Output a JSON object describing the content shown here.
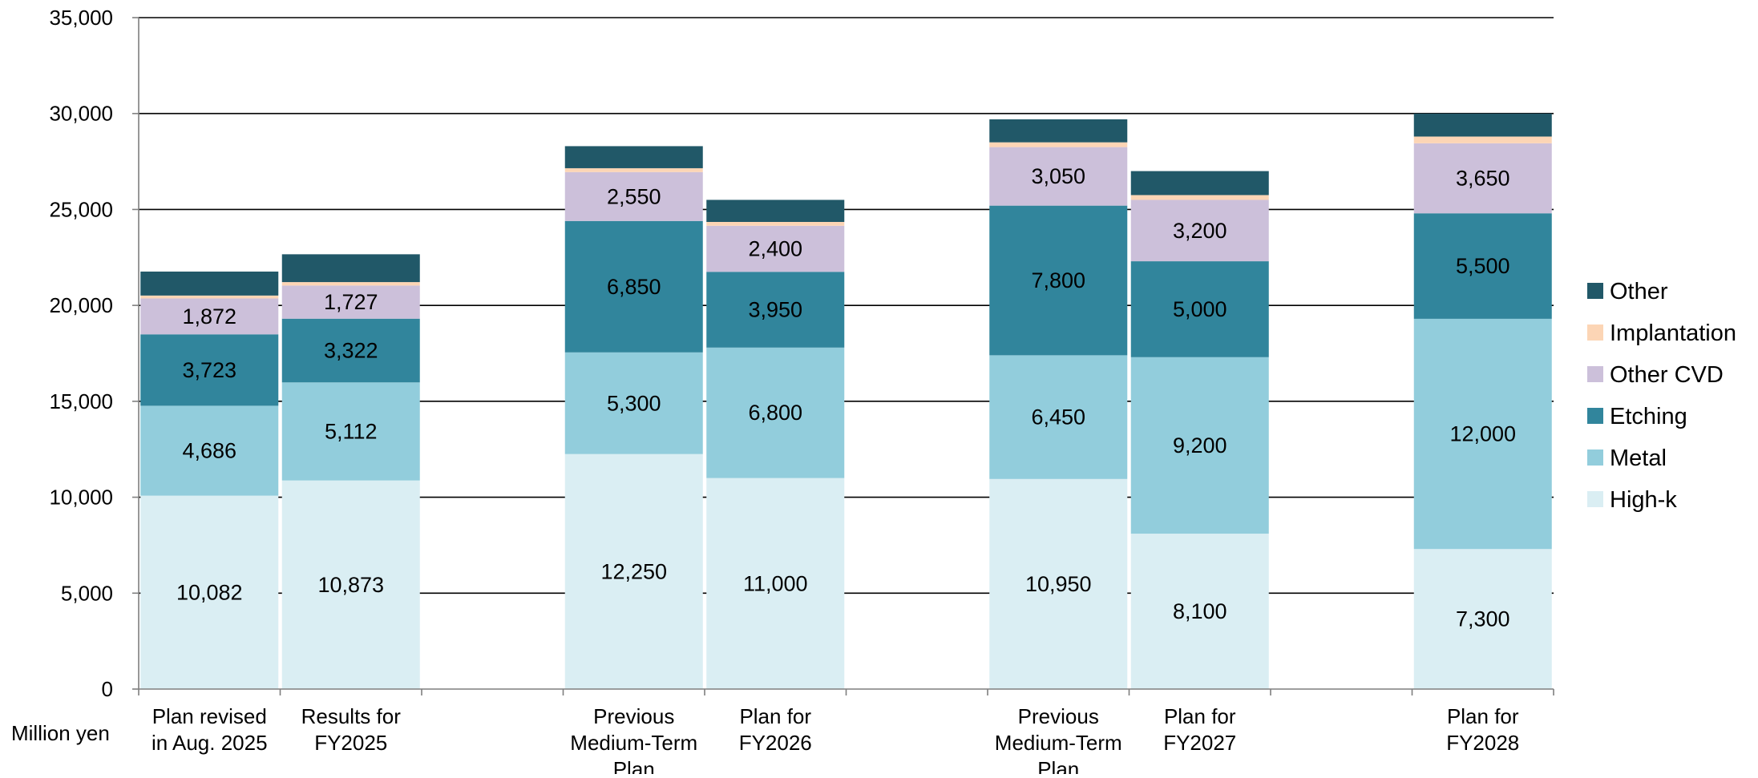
{
  "chart_data": {
    "type": "bar",
    "stacked": true,
    "unit_label": "Million yen",
    "ylim": [
      0,
      35000
    ],
    "y_ticks": [
      {
        "value": 0,
        "label": "0"
      },
      {
        "value": 5000,
        "label": "5,000"
      },
      {
        "value": 10000,
        "label": "10,000"
      },
      {
        "value": 15000,
        "label": "15,000"
      },
      {
        "value": 20000,
        "label": "20,000"
      },
      {
        "value": 25000,
        "label": "25,000"
      },
      {
        "value": 30000,
        "label": "30,000"
      },
      {
        "value": 35000,
        "label": "35,000"
      }
    ],
    "grid": true,
    "legend_position": "right",
    "categories": [
      {
        "lines": [
          "Plan revised",
          "in Aug. 2025"
        ]
      },
      {
        "lines": [
          "Results for",
          "FY2025"
        ]
      },
      null,
      {
        "lines": [
          "Previous",
          "Medium-Term",
          "Plan"
        ]
      },
      {
        "lines": [
          "Plan for",
          "FY2026"
        ]
      },
      null,
      {
        "lines": [
          "Previous",
          "Medium-Term",
          "Plan"
        ]
      },
      {
        "lines": [
          "Plan for",
          "FY2027"
        ]
      },
      null,
      {
        "lines": [
          "Plan for",
          "FY2028"
        ]
      }
    ],
    "series": [
      {
        "name": "High-k",
        "color": "#daeef3",
        "values": [
          10082,
          10873,
          null,
          12250,
          11000,
          null,
          10950,
          8100,
          null,
          7300
        ],
        "labels": [
          "10,082",
          "10,873",
          null,
          "12,250",
          "11,000",
          null,
          "10,950",
          "8,100",
          null,
          "7,300"
        ]
      },
      {
        "name": "Metal",
        "color": "#92cddc",
        "values": [
          4686,
          5112,
          null,
          5300,
          6800,
          null,
          6450,
          9200,
          null,
          12000
        ],
        "labels": [
          "4,686",
          "5,112",
          null,
          "5,300",
          "6,800",
          null,
          "6,450",
          "9,200",
          null,
          "12,000"
        ]
      },
      {
        "name": "Etching",
        "color": "#31859c",
        "values": [
          3723,
          3322,
          null,
          6850,
          3950,
          null,
          7800,
          5000,
          null,
          5500
        ],
        "labels": [
          "3,723",
          "3,322",
          null,
          "6,850",
          "3,950",
          null,
          "7,800",
          "5,000",
          null,
          "5,500"
        ]
      },
      {
        "name": "Other CVD",
        "color": "#ccc0da",
        "values": [
          1872,
          1727,
          null,
          2550,
          2400,
          null,
          3050,
          3200,
          null,
          3650
        ],
        "labels": [
          "1,872",
          "1,727",
          null,
          "2,550",
          "2,400",
          null,
          "3,050",
          "3,200",
          null,
          "3,650"
        ]
      },
      {
        "name": "Implantation",
        "color": "#fcd5b5",
        "values": [
          150,
          180,
          null,
          200,
          200,
          null,
          250,
          250,
          null,
          350
        ],
        "labels": [
          null,
          null,
          null,
          null,
          null,
          null,
          null,
          null,
          null,
          null
        ]
      },
      {
        "name": "Other",
        "color": "#215868",
        "values": [
          1250,
          1450,
          null,
          1150,
          1150,
          null,
          1200,
          1250,
          null,
          1200
        ],
        "labels": [
          null,
          null,
          null,
          null,
          null,
          null,
          null,
          null,
          null,
          null
        ]
      }
    ]
  }
}
